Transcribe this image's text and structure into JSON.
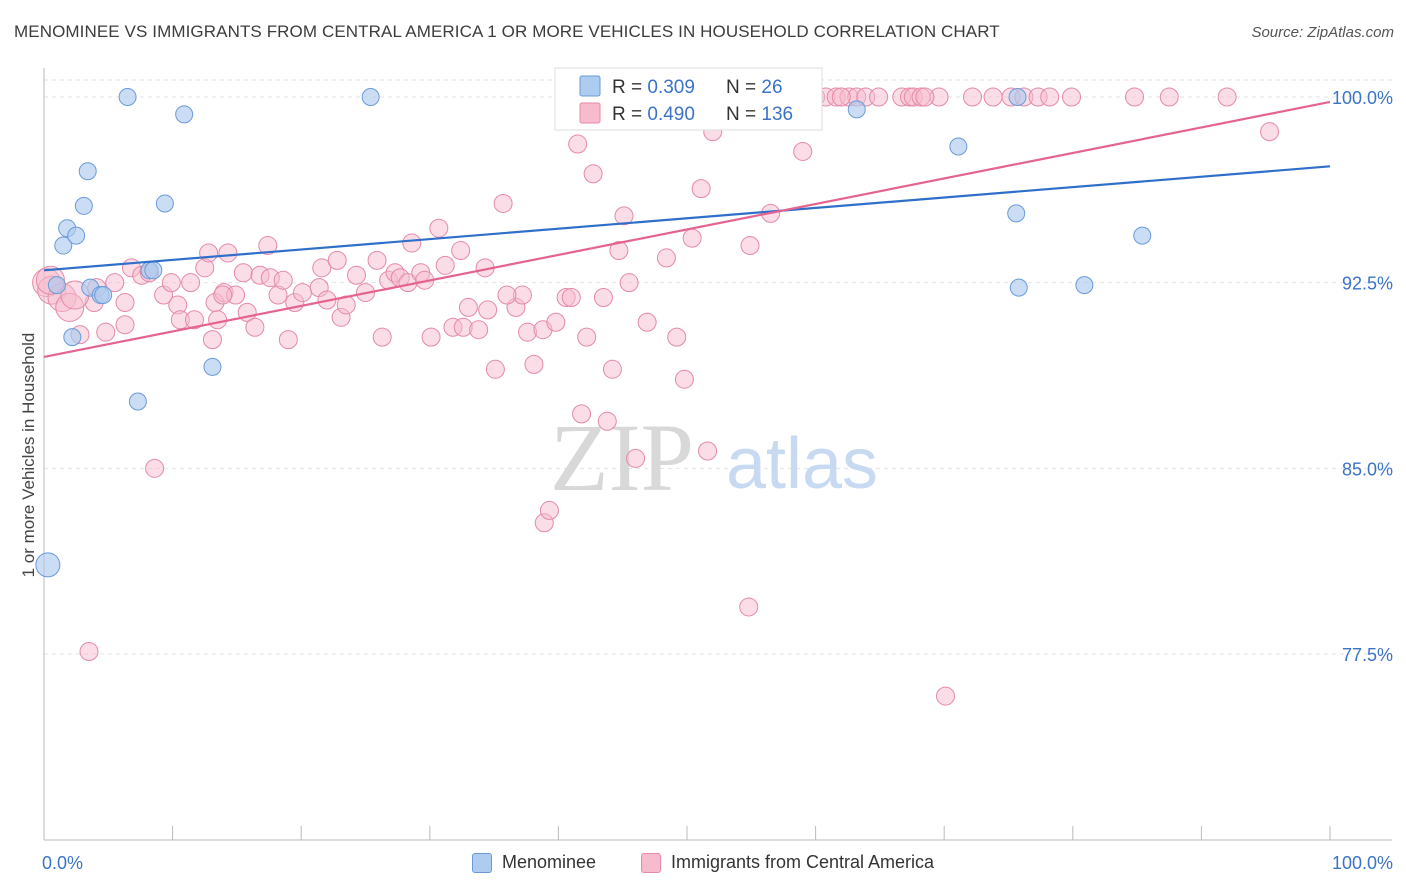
{
  "header": {
    "title": "MENOMINEE VS IMMIGRANTS FROM CENTRAL AMERICA 1 OR MORE VEHICLES IN HOUSEHOLD CORRELATION CHART",
    "source": "Source: ZipAtlas.com"
  },
  "watermark": {
    "zip": "ZIP",
    "atlas": "atlas"
  },
  "colors": {
    "menominee_fill": "#aecbf0",
    "menominee_stroke": "#6a9bd8",
    "menominee_line": "#2f6fca",
    "immigrants_fill": "#f6bccd",
    "immigrants_stroke": "#e58aa7",
    "immigrants_line": "#e5648f",
    "value_text": "#3b73c9",
    "grid": "#e2e2e2"
  },
  "legend_top": {
    "rows": [
      {
        "series": "Menominee",
        "r_label": "R = ",
        "r_value": "0.309",
        "n_label": "N = ",
        "n_value": "26"
      },
      {
        "series": "Immigrants from Central America",
        "r_label": "R = ",
        "r_value": "0.490",
        "n_label": "N = ",
        "n_value": "136"
      }
    ]
  },
  "legend_bottom": {
    "items": [
      {
        "label": "Menominee"
      },
      {
        "label": "Immigrants from Central America"
      }
    ]
  },
  "chart_data": {
    "type": "scatter",
    "title": "MENOMINEE VS IMMIGRANTS FROM CENTRAL AMERICA 1 OR MORE VEHICLES IN HOUSEHOLD CORRELATION CHART",
    "xlabel": "",
    "ylabel": "1 or more Vehicles in Household",
    "xlim": [
      0,
      100
    ],
    "ylim": [
      70,
      101.5
    ],
    "x_tick_labels": [
      "0.0%",
      "100.0%"
    ],
    "y_ticks": [
      77.5,
      85.0,
      92.5,
      100.0
    ],
    "y_tick_labels": [
      "77.5%",
      "85.0%",
      "92.5%",
      "100.0%"
    ],
    "grid": true,
    "legend_position": "top-center",
    "series": [
      {
        "name": "Menominee",
        "trend": {
          "x": [
            0,
            100
          ],
          "y": [
            93.0,
            97.2
          ]
        },
        "points": [
          [
            0.3,
            81.1
          ],
          [
            1.0,
            92.4
          ],
          [
            1.5,
            94.0
          ],
          [
            1.8,
            94.7
          ],
          [
            2.2,
            90.3
          ],
          [
            2.5,
            94.4
          ],
          [
            3.1,
            95.6
          ],
          [
            3.4,
            97.0
          ],
          [
            3.6,
            92.3
          ],
          [
            4.4,
            92.0
          ],
          [
            4.6,
            92.0
          ],
          [
            6.5,
            100.0
          ],
          [
            7.3,
            87.7
          ],
          [
            8.2,
            93.0
          ],
          [
            8.5,
            93.0
          ],
          [
            9.4,
            95.7
          ],
          [
            10.9,
            99.3
          ],
          [
            13.1,
            89.1
          ],
          [
            25.4,
            100.0
          ],
          [
            63.2,
            99.5
          ],
          [
            71.1,
            98.0
          ],
          [
            75.6,
            95.3
          ],
          [
            75.7,
            100.0
          ],
          [
            75.8,
            92.3
          ],
          [
            80.9,
            92.4
          ],
          [
            85.4,
            94.4
          ]
        ]
      },
      {
        "name": "Immigrants from Central America",
        "trend": {
          "x": [
            0,
            100
          ],
          "y": [
            89.5,
            99.8
          ]
        },
        "points": [
          [
            0.2,
            92.5
          ],
          [
            0.6,
            92.2
          ],
          [
            1.4,
            91.9
          ],
          [
            2.0,
            91.5
          ],
          [
            2.8,
            90.4
          ],
          [
            3.5,
            77.6
          ],
          [
            3.9,
            91.7
          ],
          [
            4.1,
            92.3
          ],
          [
            4.8,
            90.5
          ],
          [
            5.5,
            92.5
          ],
          [
            6.3,
            91.7
          ],
          [
            6.3,
            90.8
          ],
          [
            6.8,
            93.1
          ],
          [
            7.6,
            92.8
          ],
          [
            8.2,
            92.9
          ],
          [
            8.6,
            85.0
          ],
          [
            9.3,
            92.0
          ],
          [
            9.9,
            92.5
          ],
          [
            10.4,
            91.6
          ],
          [
            10.6,
            91.0
          ],
          [
            11.4,
            92.5
          ],
          [
            11.7,
            91.0
          ],
          [
            12.5,
            93.1
          ],
          [
            12.8,
            93.7
          ],
          [
            13.1,
            90.2
          ],
          [
            13.3,
            91.7
          ],
          [
            13.5,
            91.0
          ],
          [
            14.0,
            92.1
          ],
          [
            14.3,
            93.7
          ],
          [
            14.9,
            92.0
          ],
          [
            15.5,
            92.9
          ],
          [
            15.8,
            91.3
          ],
          [
            16.4,
            90.7
          ],
          [
            16.8,
            92.8
          ],
          [
            17.4,
            94.0
          ],
          [
            17.6,
            92.7
          ],
          [
            18.2,
            92.0
          ],
          [
            18.6,
            92.6
          ],
          [
            19.0,
            90.2
          ],
          [
            19.5,
            91.7
          ],
          [
            20.1,
            92.1
          ],
          [
            21.4,
            92.3
          ],
          [
            21.6,
            93.1
          ],
          [
            22.0,
            91.8
          ],
          [
            22.8,
            93.4
          ],
          [
            23.1,
            91.1
          ],
          [
            23.5,
            91.6
          ],
          [
            24.3,
            92.8
          ],
          [
            25.0,
            92.1
          ],
          [
            25.9,
            93.4
          ],
          [
            26.3,
            90.3
          ],
          [
            26.8,
            92.6
          ],
          [
            27.3,
            92.9
          ],
          [
            27.7,
            92.7
          ],
          [
            28.3,
            92.5
          ],
          [
            28.6,
            94.1
          ],
          [
            29.3,
            92.9
          ],
          [
            29.6,
            92.6
          ],
          [
            30.1,
            90.3
          ],
          [
            30.7,
            94.7
          ],
          [
            31.2,
            93.2
          ],
          [
            31.8,
            90.7
          ],
          [
            32.4,
            93.8
          ],
          [
            32.6,
            90.7
          ],
          [
            33.0,
            91.5
          ],
          [
            33.8,
            90.6
          ],
          [
            34.3,
            93.1
          ],
          [
            34.5,
            91.4
          ],
          [
            35.1,
            89.0
          ],
          [
            35.7,
            95.7
          ],
          [
            36.7,
            91.5
          ],
          [
            37.2,
            92.0
          ],
          [
            37.6,
            90.5
          ],
          [
            38.1,
            89.2
          ],
          [
            38.8,
            90.6
          ],
          [
            38.9,
            82.8
          ],
          [
            39.3,
            83.3
          ],
          [
            39.8,
            90.9
          ],
          [
            40.6,
            91.9
          ],
          [
            41.0,
            91.9
          ],
          [
            41.5,
            98.1
          ],
          [
            41.8,
            87.2
          ],
          [
            42.2,
            90.3
          ],
          [
            42.7,
            96.9
          ],
          [
            43.5,
            91.9
          ],
          [
            43.8,
            86.9
          ],
          [
            44.2,
            89.0
          ],
          [
            44.7,
            93.8
          ],
          [
            45.1,
            95.2
          ],
          [
            45.5,
            92.5
          ],
          [
            46.0,
            85.4
          ],
          [
            46.9,
            90.9
          ],
          [
            48.4,
            93.5
          ],
          [
            49.2,
            90.3
          ],
          [
            49.8,
            88.6
          ],
          [
            50.4,
            94.3
          ],
          [
            51.1,
            96.3
          ],
          [
            51.6,
            85.7
          ],
          [
            52.0,
            98.6
          ],
          [
            54.1,
            100.0
          ],
          [
            54.8,
            79.4
          ],
          [
            54.9,
            94.0
          ],
          [
            55.5,
            100.0
          ],
          [
            56.5,
            95.3
          ],
          [
            58.0,
            100.0
          ],
          [
            58.6,
            100.0
          ],
          [
            59.0,
            97.8
          ],
          [
            60.0,
            100.0
          ],
          [
            60.8,
            100.0
          ],
          [
            61.6,
            100.0
          ],
          [
            62.6,
            100.0
          ],
          [
            63.2,
            100.0
          ],
          [
            63.9,
            100.0
          ],
          [
            64.9,
            100.0
          ],
          [
            66.7,
            100.0
          ],
          [
            67.3,
            100.0
          ],
          [
            67.6,
            100.0
          ],
          [
            68.2,
            100.0
          ],
          [
            69.6,
            100.0
          ],
          [
            70.1,
            75.8
          ],
          [
            72.2,
            100.0
          ],
          [
            73.8,
            100.0
          ],
          [
            75.2,
            100.0
          ],
          [
            76.2,
            100.0
          ],
          [
            77.3,
            100.0
          ],
          [
            78.2,
            100.0
          ],
          [
            79.9,
            100.0
          ],
          [
            84.8,
            100.0
          ],
          [
            87.5,
            100.0
          ],
          [
            92.0,
            100.0
          ],
          [
            95.3,
            98.6
          ],
          [
            0.5,
            92.6
          ],
          [
            2.4,
            92.0
          ],
          [
            13.9,
            92.0
          ],
          [
            36.0,
            92.0
          ],
          [
            62.0,
            100.0
          ],
          [
            68.5,
            100.0
          ]
        ]
      }
    ]
  }
}
